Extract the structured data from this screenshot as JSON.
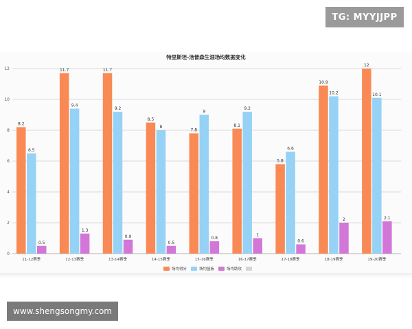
{
  "watermarks": {
    "top": "TG: MYYJJPP",
    "bottom": "www.shengsongmy.com"
  },
  "chart_data": {
    "type": "bar",
    "title": "特里斯坦-汤普森生涯场均数据变化",
    "categories": [
      "11-12赛季",
      "12-13赛季",
      "13-14赛季",
      "14-15赛季",
      "15-16赛季",
      "16-17赛季",
      "17-18赛季",
      "18-19赛季",
      "19-20赛季"
    ],
    "series": [
      {
        "name": "场均得分",
        "color": "#f98a55",
        "values": [
          8.2,
          11.7,
          11.7,
          8.5,
          7.8,
          8.1,
          5.8,
          10.9,
          12
        ]
      },
      {
        "name": "场均篮板",
        "color": "#96d2f5",
        "values": [
          6.5,
          9.4,
          9.2,
          8,
          9,
          9.2,
          6.6,
          10.2,
          10.1
        ]
      },
      {
        "name": "场均助攻",
        "color": "#d277d8",
        "values": [
          0.5,
          1.3,
          0.9,
          0.5,
          0.8,
          1,
          0.6,
          2,
          2.1
        ]
      }
    ],
    "extra_legend_swatch_color": "#d6d6d6",
    "y_ticks": [
      0,
      2,
      4,
      6,
      8,
      10,
      12
    ],
    "ylim": [
      0,
      12
    ],
    "grid": true,
    "legend_position": "bottom"
  }
}
